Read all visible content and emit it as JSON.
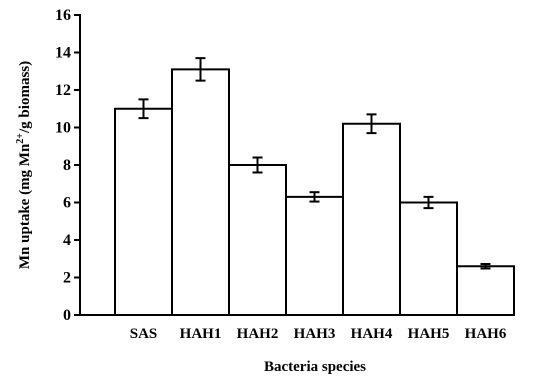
{
  "chart_data": {
    "type": "bar",
    "xlabel": "Bacteria species",
    "ylabel_parts": {
      "before": "Mn uptake (mg Mn",
      "superscript": "2+",
      "after": "/g biomass)"
    },
    "categories": [
      "SAS",
      "HAH1",
      "HAH2",
      "HAH3",
      "HAH4",
      "HAH5",
      "HAH6"
    ],
    "values": [
      11.0,
      13.1,
      8.0,
      6.3,
      10.2,
      6.0,
      2.6
    ],
    "errors": [
      0.5,
      0.6,
      0.4,
      0.25,
      0.5,
      0.3,
      0.12
    ],
    "ylim": [
      0,
      16
    ],
    "yticks": [
      "0",
      "2",
      "4",
      "6",
      "8",
      "10",
      "12",
      "14",
      "16"
    ],
    "bar_color": "#ffffff",
    "edge_color": "#000000",
    "grid": false
  }
}
